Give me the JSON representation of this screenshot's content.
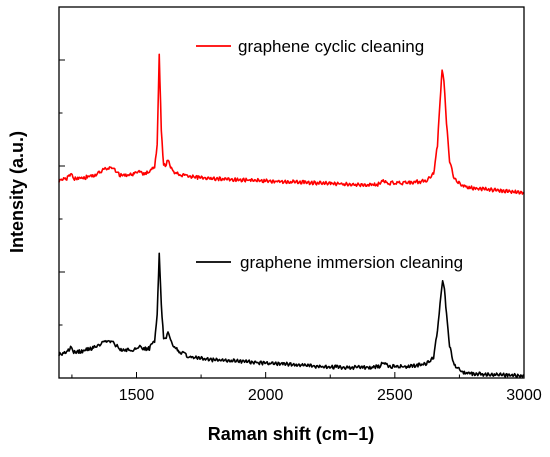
{
  "chart_data": {
    "type": "line",
    "xlabel": "Raman shift (cm−1)",
    "ylabel": "Intensity (a.u.)",
    "xlim": [
      1200,
      3000
    ],
    "x_ticks": [
      "1500",
      "2000",
      "2500",
      "3000"
    ],
    "y_ticks_labeled": false,
    "grid": false,
    "series": [
      {
        "name": "graphene cyclic cleaning",
        "color": "#ff0000",
        "legend_placement": "top-center",
        "points": [
          [
            1200,
            1.86
          ],
          [
            1230,
            1.88
          ],
          [
            1245,
            1.93
          ],
          [
            1260,
            1.88
          ],
          [
            1300,
            1.89
          ],
          [
            1340,
            1.92
          ],
          [
            1370,
            1.96
          ],
          [
            1390,
            1.99
          ],
          [
            1410,
            1.97
          ],
          [
            1440,
            1.91
          ],
          [
            1480,
            1.92
          ],
          [
            1500,
            1.93
          ],
          [
            1510,
            1.96
          ],
          [
            1525,
            1.93
          ],
          [
            1550,
            1.94
          ],
          [
            1570,
            2.0
          ],
          [
            1580,
            2.2
          ],
          [
            1588,
            3.04
          ],
          [
            1596,
            2.35
          ],
          [
            1605,
            2.0
          ],
          [
            1615,
            2.02
          ],
          [
            1622,
            2.05
          ],
          [
            1632,
            1.99
          ],
          [
            1650,
            1.93
          ],
          [
            1700,
            1.9
          ],
          [
            1800,
            1.88
          ],
          [
            1900,
            1.87
          ],
          [
            2000,
            1.86
          ],
          [
            2100,
            1.85
          ],
          [
            2200,
            1.84
          ],
          [
            2300,
            1.83
          ],
          [
            2400,
            1.82
          ],
          [
            2440,
            1.83
          ],
          [
            2455,
            1.86
          ],
          [
            2470,
            1.84
          ],
          [
            2550,
            1.84
          ],
          [
            2620,
            1.86
          ],
          [
            2650,
            1.93
          ],
          [
            2665,
            2.2
          ],
          [
            2675,
            2.6
          ],
          [
            2683,
            2.92
          ],
          [
            2690,
            2.8
          ],
          [
            2700,
            2.4
          ],
          [
            2712,
            2.05
          ],
          [
            2730,
            1.88
          ],
          [
            2760,
            1.82
          ],
          [
            2800,
            1.79
          ],
          [
            2900,
            1.77
          ],
          [
            3000,
            1.75
          ]
        ]
      },
      {
        "name": "graphene immersion cleaning",
        "color": "#000000",
        "legend_placement": "center",
        "points": [
          [
            1200,
            0.22
          ],
          [
            1230,
            0.24
          ],
          [
            1245,
            0.29
          ],
          [
            1260,
            0.24
          ],
          [
            1300,
            0.26
          ],
          [
            1340,
            0.29
          ],
          [
            1370,
            0.33
          ],
          [
            1390,
            0.36
          ],
          [
            1410,
            0.33
          ],
          [
            1440,
            0.27
          ],
          [
            1480,
            0.26
          ],
          [
            1500,
            0.27
          ],
          [
            1510,
            0.3
          ],
          [
            1525,
            0.27
          ],
          [
            1550,
            0.28
          ],
          [
            1570,
            0.35
          ],
          [
            1580,
            0.6
          ],
          [
            1588,
            1.17
          ],
          [
            1596,
            0.7
          ],
          [
            1605,
            0.36
          ],
          [
            1615,
            0.38
          ],
          [
            1622,
            0.42
          ],
          [
            1632,
            0.35
          ],
          [
            1650,
            0.28
          ],
          [
            1700,
            0.2
          ],
          [
            1800,
            0.17
          ],
          [
            1900,
            0.16
          ],
          [
            2000,
            0.14
          ],
          [
            2100,
            0.13
          ],
          [
            2200,
            0.11
          ],
          [
            2300,
            0.1
          ],
          [
            2400,
            0.1
          ],
          [
            2440,
            0.11
          ],
          [
            2458,
            0.15
          ],
          [
            2475,
            0.11
          ],
          [
            2550,
            0.11
          ],
          [
            2620,
            0.13
          ],
          [
            2650,
            0.2
          ],
          [
            2665,
            0.45
          ],
          [
            2675,
            0.7
          ],
          [
            2685,
            0.91
          ],
          [
            2692,
            0.85
          ],
          [
            2700,
            0.6
          ],
          [
            2712,
            0.3
          ],
          [
            2730,
            0.12
          ],
          [
            2760,
            0.06
          ],
          [
            2800,
            0.04
          ],
          [
            2900,
            0.03
          ],
          [
            3000,
            0.02
          ]
        ]
      }
    ]
  }
}
